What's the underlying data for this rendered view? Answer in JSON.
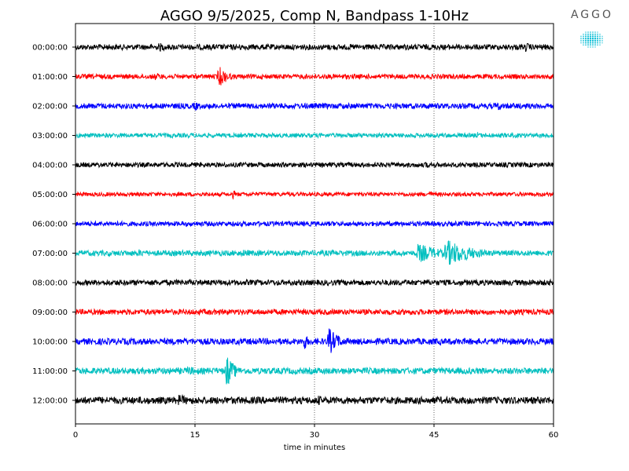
{
  "chart_data": {
    "type": "line",
    "title": "AGGO 9/5/2025, Comp N, Bandpass 1-10Hz",
    "xlabel": "time in minutes",
    "xlim": [
      0,
      60
    ],
    "x_ticks": [
      "0",
      "15",
      "30",
      "45",
      "60"
    ],
    "vertical_grid_at": [
      15,
      30,
      45
    ],
    "grid": "vertical dotted",
    "trace_colors_cycle": [
      "#000000",
      "#ff0000",
      "#0000ff",
      "#00bfbf"
    ],
    "rows": [
      {
        "label": "00:00:00",
        "color": "#000000",
        "noise": 3.5,
        "events": [
          {
            "t": 10.5,
            "amp": 6,
            "dur": 1.5
          },
          {
            "t": 56.5,
            "amp": 6,
            "dur": 1.5
          }
        ]
      },
      {
        "label": "01:00:00",
        "color": "#ff0000",
        "noise": 3.0,
        "events": [
          {
            "t": 18.0,
            "amp": 14,
            "dur": 1.2
          },
          {
            "t": 10.0,
            "amp": 5,
            "dur": 2
          }
        ]
      },
      {
        "label": "02:00:00",
        "color": "#0000ff",
        "noise": 3.5,
        "events": [
          {
            "t": 15.0,
            "amp": 7,
            "dur": 0.8
          },
          {
            "t": 53.0,
            "amp": 7,
            "dur": 0.6
          }
        ]
      },
      {
        "label": "03:00:00",
        "color": "#00bfbf",
        "noise": 2.8,
        "events": [
          {
            "t": 50.5,
            "amp": 5,
            "dur": 0.5
          }
        ]
      },
      {
        "label": "04:00:00",
        "color": "#000000",
        "noise": 3.0,
        "events": [
          {
            "t": 44.0,
            "amp": 5,
            "dur": 0.5
          }
        ]
      },
      {
        "label": "05:00:00",
        "color": "#ff0000",
        "noise": 2.5,
        "events": [
          {
            "t": 19.8,
            "amp": 6,
            "dur": 0.4
          },
          {
            "t": 44.5,
            "amp": 6,
            "dur": 0.4
          }
        ]
      },
      {
        "label": "06:00:00",
        "color": "#0000ff",
        "noise": 3.0,
        "events": []
      },
      {
        "label": "07:00:00",
        "color": "#00bfbf",
        "noise": 3.5,
        "events": [
          {
            "t": 8.0,
            "amp": 5,
            "dur": 3
          },
          {
            "t": 21.0,
            "amp": 5,
            "dur": 3
          },
          {
            "t": 43.0,
            "amp": 13,
            "dur": 3
          },
          {
            "t": 46.5,
            "amp": 18,
            "dur": 3.5
          }
        ]
      },
      {
        "label": "08:00:00",
        "color": "#000000",
        "noise": 3.5,
        "events": [
          {
            "t": 57.0,
            "amp": 5,
            "dur": 2
          }
        ]
      },
      {
        "label": "09:00:00",
        "color": "#ff0000",
        "noise": 3.5,
        "events": [
          {
            "t": 55.0,
            "amp": 5,
            "dur": 1
          }
        ]
      },
      {
        "label": "10:00:00",
        "color": "#0000ff",
        "noise": 4.0,
        "events": [
          {
            "t": 28.7,
            "amp": 12,
            "dur": 0.6
          },
          {
            "t": 31.8,
            "amp": 18,
            "dur": 1.4
          }
        ]
      },
      {
        "label": "11:00:00",
        "color": "#00bfbf",
        "noise": 4.0,
        "events": [
          {
            "t": 19.0,
            "amp": 22,
            "dur": 1.0
          },
          {
            "t": 14.0,
            "amp": 6,
            "dur": 4
          }
        ]
      },
      {
        "label": "12:00:00",
        "color": "#000000",
        "noise": 4.5,
        "events": [
          {
            "t": 13.0,
            "amp": 8,
            "dur": 2
          },
          {
            "t": 30.5,
            "amp": 7,
            "dur": 1
          }
        ]
      }
    ]
  },
  "logo": {
    "text": "AGGO",
    "color": "#00bcd4"
  }
}
